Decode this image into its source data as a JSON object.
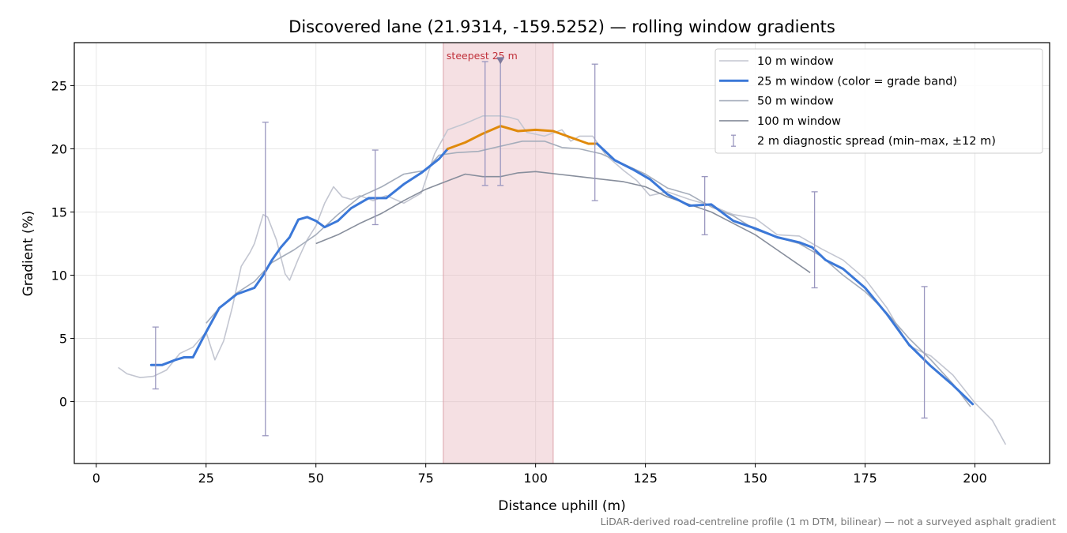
{
  "chart_data": {
    "type": "line",
    "title": "Discovered lane (21.9314, -159.5252) — rolling window gradients",
    "xlabel": "Distance uphill (m)",
    "ylabel": "Gradient (%)",
    "xlim": [
      -5,
      217
    ],
    "ylim": [
      -4.9,
      28.4
    ],
    "xticks": [
      0,
      25,
      50,
      75,
      100,
      125,
      150,
      175,
      200
    ],
    "yticks": [
      0,
      5,
      10,
      15,
      20,
      25
    ],
    "grid": true,
    "legend_position": "top-right",
    "footnote": "LiDAR-derived road-centreline profile (1 m DTM, bilinear) — not a surveyed asphalt gradient",
    "colors": {
      "w10": "#c3c6d1",
      "w25_band_low": "#3b78d8",
      "w25_band_high": "#e08a0b",
      "w50": "#a5adbb",
      "w100": "#878e9c",
      "spread": "#9a97bf",
      "steep_band": "#e7b6bc"
    },
    "steepest_segment": {
      "label": "steepest 25 m",
      "x_start": 79,
      "x_end": 104,
      "marker_x": 92,
      "marker_y": 27
    },
    "series": [
      {
        "name": "10 m window",
        "x": [
          5,
          7,
          10,
          13,
          16,
          19,
          22,
          25,
          27,
          29,
          31,
          33,
          35,
          36,
          38,
          39,
          41,
          43,
          44,
          46,
          48,
          50,
          52,
          54,
          56,
          58,
          60,
          63,
          66,
          70,
          74,
          77,
          80,
          84,
          88,
          92,
          94,
          96,
          98,
          102,
          106,
          108,
          110,
          113,
          116,
          120,
          123,
          126,
          130,
          135,
          140,
          145,
          150,
          155,
          160,
          165,
          170,
          175,
          180,
          185,
          190,
          195,
          200,
          204,
          207
        ],
        "y": [
          2.7,
          2.2,
          1.9,
          2.0,
          2.5,
          3.8,
          4.3,
          5.5,
          3.3,
          4.8,
          7.5,
          10.7,
          11.8,
          12.5,
          14.8,
          14.6,
          12.8,
          10.1,
          9.6,
          11.3,
          12.8,
          13.9,
          15.7,
          17.0,
          16.2,
          16.0,
          16.3,
          15.9,
          16.3,
          15.7,
          16.5,
          19.6,
          21.5,
          22.0,
          22.6,
          22.6,
          22.5,
          22.3,
          21.3,
          21.0,
          21.5,
          20.6,
          21.0,
          21.0,
          19.5,
          18.3,
          17.5,
          16.3,
          16.6,
          16.0,
          15.5,
          14.8,
          14.5,
          13.2,
          13.1,
          12.1,
          11.2,
          9.7,
          7.4,
          4.4,
          3.6,
          2.1,
          -0.1,
          -1.5,
          -3.4
        ]
      },
      {
        "name": "25 m window (color = grade band)",
        "x": [
          12.5,
          15,
          18,
          20,
          22,
          25,
          28,
          32,
          36,
          38,
          40,
          42,
          44,
          46,
          48,
          50,
          52,
          55,
          58,
          62,
          66,
          70,
          74,
          78,
          80,
          84,
          88,
          92,
          96,
          100,
          104,
          108,
          112,
          114,
          118,
          122,
          126,
          130,
          135,
          140,
          145,
          150,
          155,
          160,
          163,
          166,
          170,
          175,
          180,
          185,
          190,
          195,
          199.5
        ],
        "y": [
          2.9,
          2.9,
          3.3,
          3.5,
          3.5,
          5.5,
          7.4,
          8.5,
          9.0,
          10.0,
          11.2,
          12.2,
          13.0,
          14.4,
          14.6,
          14.3,
          13.8,
          14.3,
          15.3,
          16.1,
          16.1,
          17.2,
          18.1,
          19.2,
          20.0,
          20.5,
          21.2,
          21.8,
          21.4,
          21.5,
          21.4,
          20.9,
          20.4,
          20.4,
          19.1,
          18.4,
          17.6,
          16.4,
          15.5,
          15.6,
          14.3,
          13.7,
          13.0,
          12.6,
          12.2,
          11.2,
          10.5,
          9.0,
          6.9,
          4.5,
          2.8,
          1.3,
          -0.2
        ]
      },
      {
        "name": "50 m window",
        "x": [
          25,
          28,
          32,
          36,
          40,
          45,
          50,
          55,
          60,
          65,
          70,
          75,
          78,
          82,
          87,
          92,
          97,
          102,
          106,
          110,
          115,
          120,
          125,
          130,
          135,
          140,
          145,
          150,
          155,
          160,
          165,
          170,
          175,
          180,
          185,
          190,
          195,
          199
        ],
        "y": [
          6.2,
          7.4,
          8.6,
          9.5,
          11.0,
          12.0,
          13.2,
          14.8,
          16.2,
          17.0,
          18.0,
          18.3,
          19.5,
          19.7,
          19.8,
          20.2,
          20.6,
          20.6,
          20.1,
          20.0,
          19.6,
          18.8,
          18.0,
          16.9,
          16.4,
          15.4,
          14.7,
          13.6,
          13.0,
          12.5,
          11.5,
          10.0,
          8.7,
          7.0,
          5.0,
          3.3,
          1.4,
          -0.4
        ]
      },
      {
        "name": "100 m window",
        "x": [
          50,
          55,
          60,
          65,
          70,
          75,
          78,
          81,
          84,
          88,
          92,
          96,
          100,
          105,
          110,
          115,
          120,
          125,
          130,
          135,
          140,
          145,
          150,
          155,
          160,
          162.5
        ],
        "y": [
          12.5,
          13.2,
          14.1,
          14.9,
          15.9,
          16.8,
          17.2,
          17.6,
          18.0,
          17.8,
          17.8,
          18.1,
          18.2,
          18.0,
          17.8,
          17.6,
          17.4,
          17.0,
          16.2,
          15.6,
          15.0,
          14.1,
          13.2,
          12.0,
          10.8,
          10.2
        ]
      }
    ],
    "errorbars": {
      "name": "2 m diagnostic spread (min–max, ±12 m)",
      "x": [
        13.5,
        38.5,
        63.5,
        88.5,
        92,
        113.5,
        138.5,
        163.5,
        188.5
      ],
      "low": [
        1.0,
        -2.7,
        14.0,
        17.1,
        17.1,
        15.9,
        13.2,
        9.0,
        -1.3
      ],
      "high": [
        5.9,
        22.1,
        19.9,
        26.9,
        27.1,
        26.7,
        17.8,
        16.6,
        9.1
      ]
    },
    "band_split": {
      "high_from_x": 80,
      "high_to_x": 114
    }
  }
}
